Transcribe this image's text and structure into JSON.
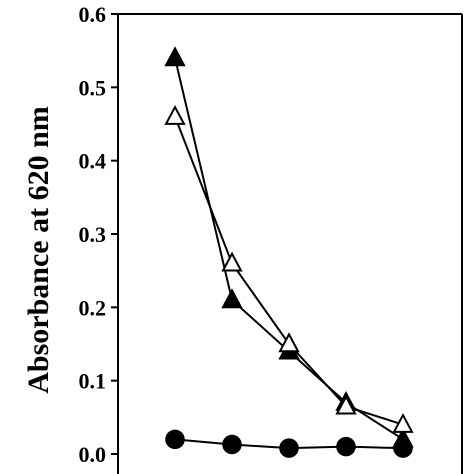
{
  "chart_data": {
    "type": "line",
    "title": "",
    "xlabel": "",
    "ylabel": "Absorbance at 620 nm",
    "ylim": [
      0,
      0.6
    ],
    "yticks": [
      "0.0",
      "0.1",
      "0.2",
      "0.3",
      "0.4",
      "0.5",
      "0.6"
    ],
    "x": [
      1,
      2,
      3,
      4,
      5
    ],
    "grid": false,
    "series": [
      {
        "marker": "filled-triangle",
        "color": "#000000",
        "values": [
          0.54,
          0.21,
          0.14,
          0.07,
          0.02
        ]
      },
      {
        "marker": "open-triangle",
        "color": "#000000",
        "values": [
          0.46,
          0.26,
          0.15,
          0.065,
          0.04
        ]
      },
      {
        "marker": "filled-circle",
        "color": "#000000",
        "values": [
          0.02,
          0.013,
          0.008,
          0.01,
          0.008
        ]
      }
    ]
  }
}
